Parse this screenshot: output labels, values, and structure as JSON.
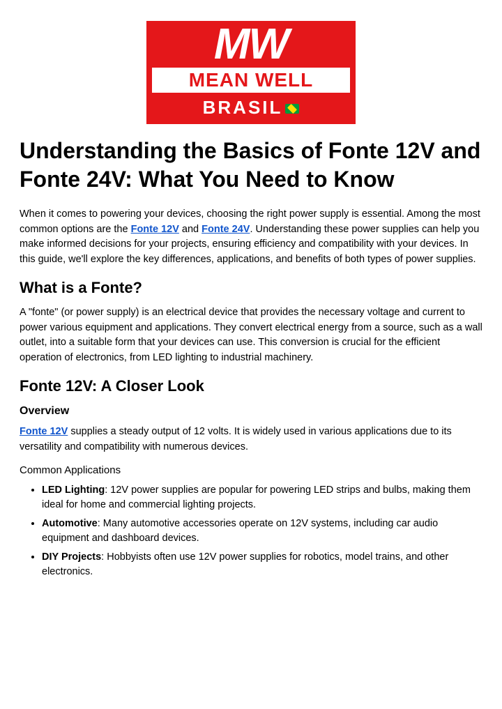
{
  "logo": {
    "mw": "MW",
    "meanwell": "MEAN WELL",
    "brasil": "BRASIL",
    "bg_color": "#e4171a",
    "text_color": "#ffffff"
  },
  "title": "Understanding the Basics of Fonte 12V and Fonte 24V: What You Need to Know",
  "intro": {
    "p1_a": "When it comes to powering your devices, choosing the right power supply is essential. Among the most common options are the ",
    "link1": "Fonte 12V",
    "p1_b": " and ",
    "link2": "Fonte 24V",
    "p1_c": ". Understanding these power supplies can help you make informed decisions for your projects, ensuring efficiency and compatibility with your devices. In this guide, we'll explore the key differences, applications, and benefits of both types of power supplies."
  },
  "section_what": {
    "heading": "What is a Fonte?",
    "body": "A \"fonte\" (or power supply) is an electrical device that provides the necessary voltage and current to power various equipment and applications. They convert electrical energy from a source, such as a wall outlet, into a suitable form that your devices can use. This conversion is crucial for the efficient operation of electronics, from LED lighting to industrial machinery."
  },
  "section_12v": {
    "heading": "Fonte 12V: A Closer Look",
    "overview_label": "Overview",
    "overview_link": "Fonte 12V",
    "overview_text": " supplies a steady output of 12 volts. It is widely used in various applications due to its versatility and compatibility with numerous devices.",
    "apps_label": "Common Applications",
    "apps": [
      {
        "b": "LED Lighting",
        "t": ": 12V power supplies are popular for powering LED strips and bulbs, making them ideal for home and commercial lighting projects."
      },
      {
        "b": "Automotive",
        "t": ": Many automotive accessories operate on 12V systems, including car audio equipment and dashboard devices."
      },
      {
        "b": "DIY Projects",
        "t": ": Hobbyists often use 12V power supplies for robotics, model trains, and other electronics."
      }
    ]
  },
  "link_color": "#1155cc"
}
